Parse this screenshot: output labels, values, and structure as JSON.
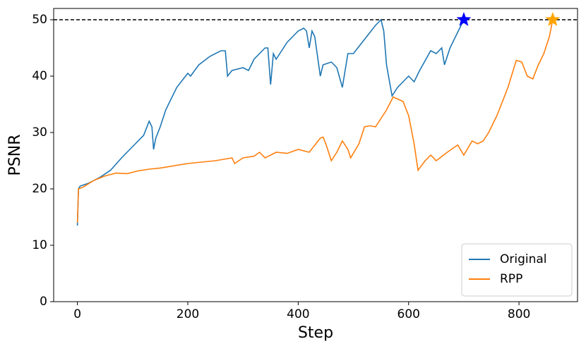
{
  "chart_data": {
    "type": "line",
    "xlabel": "Step",
    "ylabel": "PSNR",
    "xlim": [
      -43,
      906
    ],
    "ylim": [
      0,
      52
    ],
    "xticks": [
      0,
      200,
      400,
      600,
      800
    ],
    "yticks": [
      0,
      10,
      20,
      30,
      40,
      50
    ],
    "legend": "lower right",
    "hline": {
      "y": 50,
      "color": "#000000",
      "style": "dashed"
    },
    "series": [
      {
        "name": "Original",
        "color": "#1f77b4",
        "x": [
          0,
          2,
          5,
          20,
          40,
          60,
          80,
          100,
          120,
          130,
          135,
          138,
          142,
          150,
          160,
          180,
          200,
          205,
          220,
          240,
          260,
          268,
          272,
          280,
          300,
          310,
          320,
          340,
          345,
          350,
          355,
          360,
          380,
          400,
          410,
          415,
          420,
          425,
          430,
          440,
          445,
          460,
          470,
          480,
          490,
          500,
          520,
          540,
          550,
          555,
          560,
          570,
          580,
          600,
          610,
          620,
          640,
          650,
          660,
          665,
          675,
          690,
          700
        ],
        "values": [
          13.5,
          20,
          20.5,
          21,
          22,
          23.3,
          25.5,
          27.5,
          29.5,
          32,
          31,
          27,
          29,
          31,
          34,
          38,
          40.5,
          40,
          42,
          43.5,
          44.5,
          44.5,
          40,
          41,
          41.5,
          41,
          43,
          45,
          45,
          38.5,
          44,
          43,
          46,
          48,
          48.5,
          48,
          45,
          48,
          47,
          40,
          42,
          42.5,
          41.5,
          38,
          44,
          44,
          46.5,
          49,
          50,
          48,
          42,
          36.5,
          38,
          40,
          39,
          41,
          44.5,
          44,
          45,
          42,
          45,
          48,
          50
        ],
        "end_marker": {
          "x": 700,
          "y": 50,
          "color": "#0000ff",
          "shape": "star"
        }
      },
      {
        "name": "RPP",
        "color": "#ff7f0e",
        "x": [
          0,
          2,
          10,
          30,
          50,
          70,
          90,
          110,
          130,
          150,
          200,
          250,
          280,
          285,
          300,
          320,
          330,
          340,
          360,
          380,
          400,
          420,
          440,
          445,
          450,
          460,
          470,
          480,
          490,
          495,
          510,
          520,
          530,
          540,
          560,
          572,
          590,
          600,
          610,
          617,
          630,
          640,
          650,
          670,
          689,
          700,
          715,
          725,
          735,
          745,
          760,
          780,
          795,
          805,
          815,
          825,
          835,
          845,
          855,
          861
        ],
        "values": [
          14,
          20,
          20.3,
          21.5,
          22.3,
          22.8,
          22.7,
          23.2,
          23.5,
          23.7,
          24.5,
          25,
          25.5,
          24.5,
          25.5,
          25.8,
          26.5,
          25.5,
          26.5,
          26.3,
          27,
          26.5,
          29,
          29.2,
          28,
          25,
          26.5,
          28.5,
          27,
          25.5,
          28,
          31,
          31.2,
          31,
          34,
          36.3,
          35.5,
          33,
          28,
          23.3,
          25,
          26,
          25,
          26.5,
          27.8,
          26,
          28.5,
          28,
          28.5,
          30,
          33,
          38,
          42.8,
          42.5,
          40,
          39.5,
          42,
          44,
          47,
          50
        ],
        "end_marker": {
          "x": 861,
          "y": 50,
          "color": "#ffa500",
          "shape": "star"
        }
      }
    ]
  }
}
